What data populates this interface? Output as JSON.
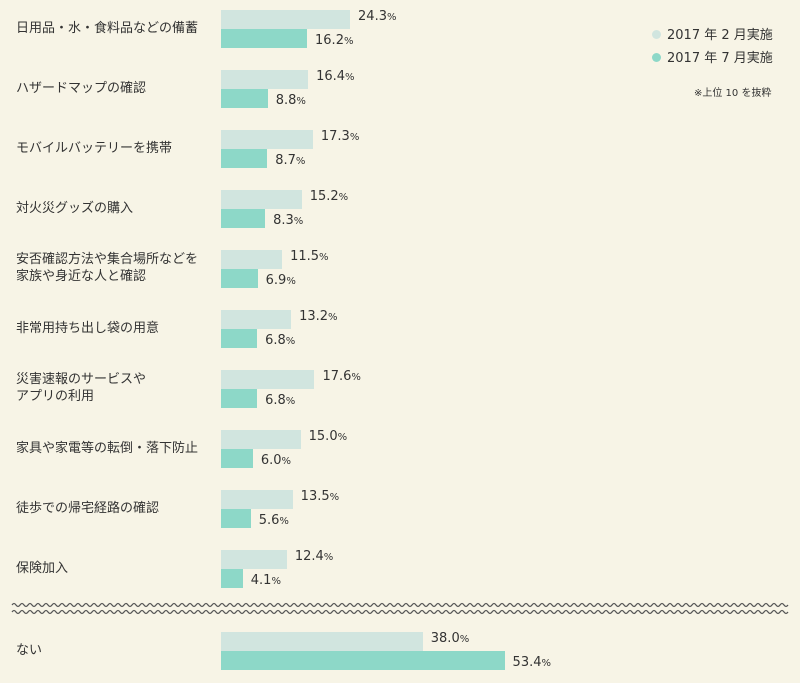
{
  "chart_data": {
    "type": "bar",
    "orientation": "horizontal",
    "unit": "%",
    "legend": [
      {
        "name": "2017 年 2 月実施",
        "color": "#d1e5df"
      },
      {
        "name": "2017 年 7 月実施",
        "color": "#8dd8c8"
      }
    ],
    "note": "※上位 10 を抜粋",
    "categories": [
      "日用品・水・食料品などの備蓄",
      "ハザードマップの確認",
      "モバイルバッテリーを携帯",
      "対火災グッズの購入",
      "安否確認方法や集合場所などを\n家族や身近な人と確認",
      "非常用持ち出し袋の用意",
      "災害速報のサービスや\nアプリの利用",
      "家具や家電等の転倒・落下防止",
      "徒歩での帰宅経路の確認",
      "保険加入",
      "ない"
    ],
    "series": [
      {
        "name": "2017 年 2 月実施",
        "values": [
          24.3,
          16.4,
          17.3,
          15.2,
          11.5,
          13.2,
          17.6,
          15.0,
          13.5,
          12.4,
          38.0
        ]
      },
      {
        "name": "2017 年 7 月実施",
        "values": [
          16.2,
          8.8,
          8.7,
          8.3,
          6.9,
          6.8,
          6.8,
          6.0,
          5.6,
          4.1,
          53.4
        ]
      }
    ]
  }
}
